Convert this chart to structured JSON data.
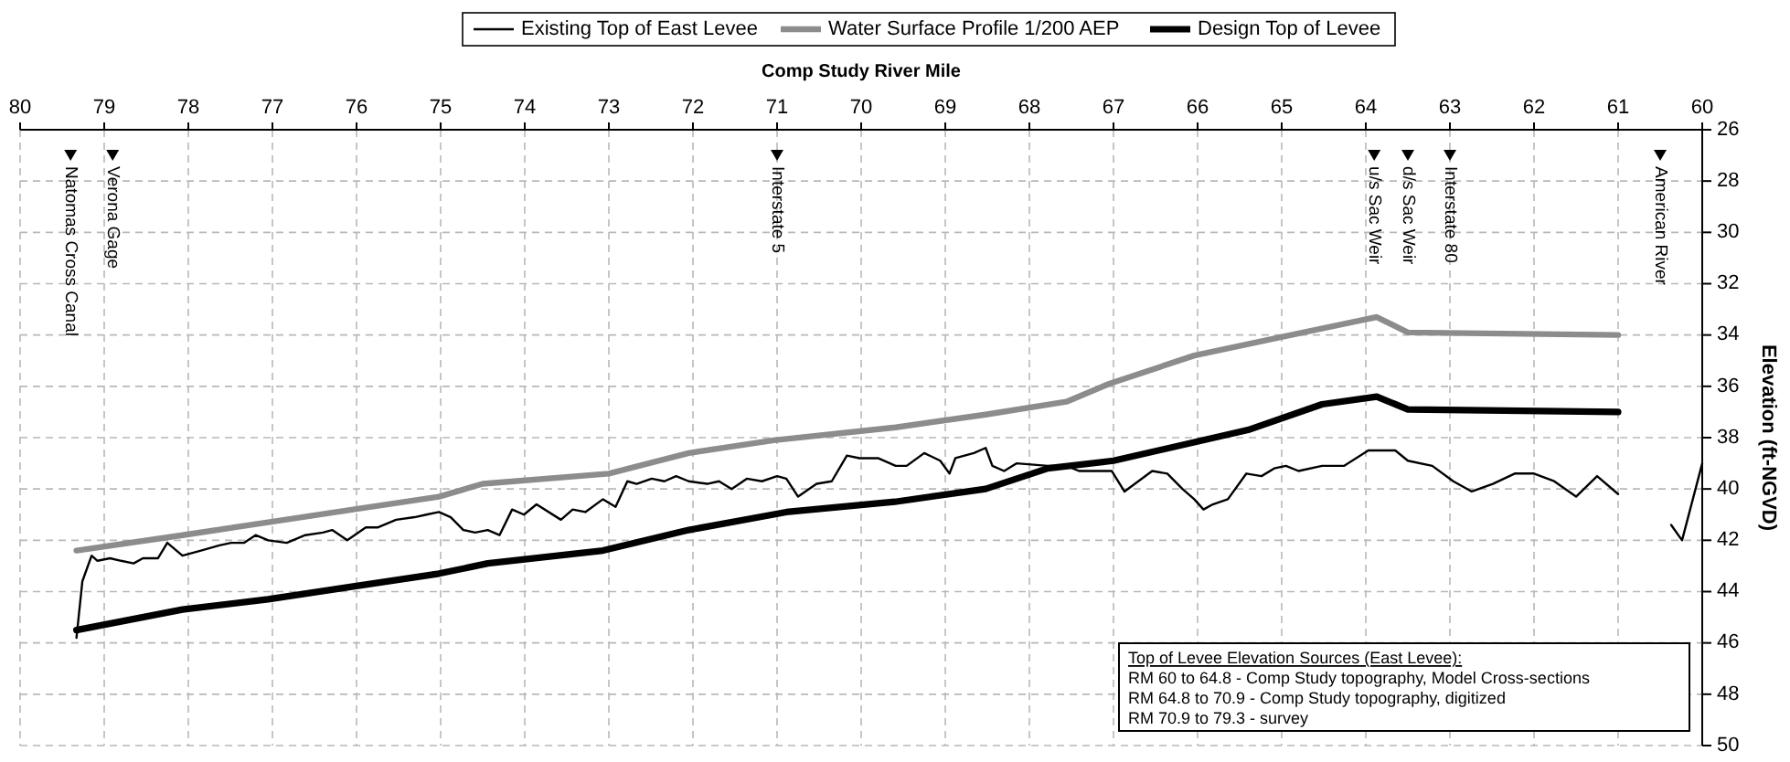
{
  "chart_data": {
    "type": "line",
    "xlabel": "Comp Study River Mile",
    "ylabel": "Elevation (ft-NGVD)",
    "xlim": [
      80,
      60
    ],
    "xticks": [
      60,
      61,
      62,
      63,
      64,
      65,
      66,
      67,
      68,
      69,
      70,
      71,
      72,
      73,
      74,
      75,
      76,
      77,
      78,
      79,
      80
    ],
    "ylim": [
      50,
      26
    ],
    "yticks": [
      26,
      28,
      30,
      32,
      34,
      36,
      38,
      40,
      42,
      44,
      46,
      48,
      50
    ],
    "grid": true,
    "legend": "top",
    "line_style": "solid",
    "marker": "none",
    "series": [
      {
        "name": "Existing Top of East Levee",
        "color": "#000000",
        "x": [
          60.0,
          60.24,
          60.37,
          60.7,
          61.0,
          61.25,
          61.5,
          61.76,
          62.0,
          62.23,
          62.49,
          62.74,
          62.96,
          63.21,
          63.5,
          63.65,
          63.97,
          64.26,
          64.52,
          64.8,
          64.95,
          65.09,
          65.24,
          65.42,
          65.64,
          65.82,
          65.93,
          66.04,
          66.18,
          66.36,
          66.54,
          66.87,
          67.02,
          67.2,
          67.41,
          67.56,
          67.78,
          68.15,
          68.3,
          68.44,
          68.52,
          68.66,
          68.88,
          68.95,
          69.06,
          69.25,
          69.46,
          69.59,
          69.8,
          70.02,
          70.17,
          70.35,
          70.53,
          70.75,
          70.89,
          71.0,
          71.18,
          71.36,
          71.54,
          71.69,
          71.83,
          72.05,
          72.2,
          72.34,
          72.49,
          72.67,
          72.78,
          72.92,
          73.07,
          73.28,
          73.43,
          73.57,
          73.86,
          74.01,
          74.15,
          74.3,
          74.44,
          74.59,
          74.73,
          74.88,
          75.02,
          75.17,
          75.31,
          75.53,
          75.75,
          75.89,
          76.11,
          76.29,
          76.4,
          76.61,
          76.83,
          77.05,
          77.2,
          77.34,
          77.49,
          77.63,
          77.85,
          78.07,
          78.25,
          78.36,
          78.54,
          78.65,
          78.8,
          78.93,
          79.08,
          79.15,
          79.26,
          79.33
        ],
        "values": [
          39.0,
          42.0,
          41.4,
          null,
          40.2,
          39.5,
          40.3,
          39.7,
          39.4,
          39.4,
          39.8,
          40.1,
          39.7,
          39.1,
          38.9,
          38.5,
          38.5,
          39.1,
          39.1,
          39.3,
          39.1,
          39.2,
          39.5,
          39.4,
          40.4,
          40.6,
          40.8,
          40.4,
          40.0,
          39.4,
          39.3,
          40.1,
          39.3,
          39.3,
          39.3,
          39.1,
          39.1,
          39.0,
          39.3,
          39.1,
          38.4,
          38.6,
          38.8,
          39.4,
          38.9,
          38.6,
          39.1,
          39.1,
          38.8,
          38.8,
          38.7,
          39.7,
          39.8,
          40.3,
          39.6,
          39.5,
          39.7,
          39.6,
          40.0,
          39.7,
          39.8,
          39.7,
          39.5,
          39.7,
          39.6,
          39.8,
          39.7,
          40.7,
          40.4,
          40.9,
          40.8,
          41.2,
          40.6,
          41.0,
          40.8,
          41.8,
          41.6,
          41.7,
          41.6,
          41.1,
          40.9,
          41.0,
          41.1,
          41.2,
          41.5,
          41.5,
          42.0,
          41.6,
          41.7,
          41.8,
          42.1,
          42.0,
          41.8,
          42.1,
          42.1,
          42.2,
          42.4,
          42.6,
          42.1,
          42.7,
          42.7,
          42.9,
          42.8,
          42.7,
          42.8,
          42.6,
          43.6,
          45.8
        ]
      },
      {
        "name": "Water Surface Profile 1/200 AEP",
        "color": "#8c8c8c",
        "x": [
          61.0,
          63.5,
          63.87,
          64.02,
          65.03,
          66.04,
          67.05,
          67.56,
          68.52,
          69.59,
          71.04,
          72.05,
          73.0,
          74.5,
          75.02,
          76.04,
          77.05,
          78.07,
          79.33
        ],
        "values": [
          34.0,
          33.9,
          33.3,
          33.4,
          34.1,
          34.8,
          35.9,
          36.6,
          37.1,
          37.6,
          38.1,
          38.6,
          39.4,
          39.8,
          40.3,
          40.8,
          41.3,
          41.8,
          42.4
        ]
      },
      {
        "name": "Design Top of Levee",
        "color": "#000000",
        "x": [
          61.0,
          63.5,
          63.87,
          64.52,
          65.4,
          67.0,
          67.78,
          68.52,
          69.6,
          70.89,
          72.05,
          73.07,
          74.44,
          75.02,
          76.04,
          77.05,
          78.07,
          79.33
        ],
        "values": [
          37.0,
          36.9,
          36.4,
          36.7,
          37.7,
          38.9,
          39.2,
          40.0,
          40.5,
          40.9,
          41.6,
          42.4,
          42.9,
          43.3,
          43.8,
          44.3,
          44.7,
          45.5
        ]
      }
    ],
    "annotations": [
      {
        "text": "American River",
        "x": 60.5,
        "y": 27
      },
      {
        "text": "Interstate 80",
        "x": 63.0,
        "y": 27
      },
      {
        "text": "d/s Sac Weir",
        "x": 63.5,
        "y": 27
      },
      {
        "text": "u/s Sac Weir",
        "x": 63.9,
        "y": 27
      },
      {
        "text": "Interstate 5",
        "x": 71.0,
        "y": 27
      },
      {
        "text": "Verona Gage",
        "x": 78.9,
        "y": 27
      },
      {
        "text": "Natomas Cross Canal",
        "x": 79.4,
        "y": 27
      },
      "Top of Levee Elevation Sources (East Levee):",
      "RM 60 to 64.8 - Comp Study topography, Model Cross-sections",
      "RM 64.8 to 70.9 - Comp Study topography, digitized",
      "RM 70.9 to 79.3 - survey"
    ]
  }
}
